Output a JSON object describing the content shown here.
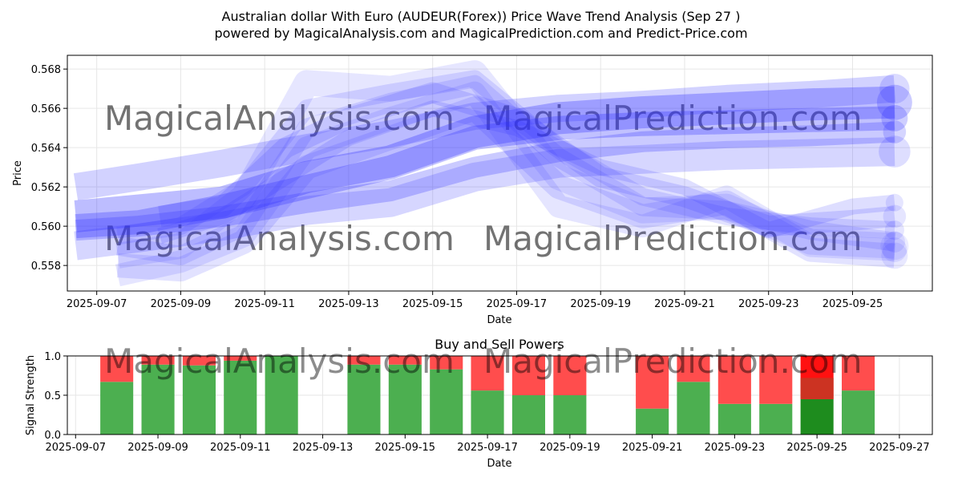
{
  "figure": {
    "title_line1": "Australian dollar With Euro (AUDEUR(Forex)) Price Wave Trend Analysis (Sep 27 )",
    "title_line2": "powered by MagicalAnalysis.com and MagicalPrediction.com and Predict-Price.com",
    "watermark_left": "MagicalAnalysis.com",
    "watermark_right": "MagicalPrediction.com"
  },
  "chart_data": [
    {
      "type": "line",
      "name": "price-wave",
      "xlabel": "Date",
      "ylabel": "Price",
      "xlim": [
        "2025-09-06.3",
        "2025-09-26.9"
      ],
      "ylim": [
        0.5567,
        0.5687
      ],
      "x_ticks": [
        "2025-09-07",
        "2025-09-09",
        "2025-09-11",
        "2025-09-13",
        "2025-09-15",
        "2025-09-17",
        "2025-09-19",
        "2025-09-21",
        "2025-09-23",
        "2025-09-25"
      ],
      "y_ticks": [
        0.558,
        0.56,
        0.562,
        0.564,
        0.566,
        0.568
      ],
      "color": "#3333ff",
      "series": [
        {
          "name": "wave-1",
          "x": [
            "2025-09-06.5",
            "2025-09-08",
            "2025-09-10",
            "2025-09-12",
            "2025-09-14",
            "2025-09-16",
            "2025-09-18",
            "2025-09-20",
            "2025-09-22",
            "2025-09-24",
            "2025-09-26"
          ],
          "values": [
            0.5605,
            0.5608,
            0.5612,
            0.5625,
            0.5633,
            0.5648,
            0.5655,
            0.5658,
            0.566,
            0.5662,
            0.5663
          ]
        },
        {
          "name": "wave-2",
          "x": [
            "2025-09-06.5",
            "2025-09-08",
            "2025-09-10",
            "2025-09-12",
            "2025-09-14",
            "2025-09-16",
            "2025-09-18",
            "2025-09-20",
            "2025-09-22",
            "2025-09-24",
            "2025-09-26"
          ],
          "values": [
            0.56,
            0.5602,
            0.561,
            0.562,
            0.563,
            0.5645,
            0.565,
            0.5652,
            0.5653,
            0.5654,
            0.5655
          ]
        },
        {
          "name": "wave-3",
          "x": [
            "2025-09-06.5",
            "2025-09-08",
            "2025-09-10",
            "2025-09-12",
            "2025-09-14",
            "2025-09-16",
            "2025-09-18",
            "2025-09-20",
            "2025-09-22",
            "2025-09-24",
            "2025-09-26"
          ],
          "values": [
            0.562,
            0.5625,
            0.5632,
            0.564,
            0.5647,
            0.5656,
            0.566,
            0.5662,
            0.5665,
            0.5667,
            0.567
          ]
        },
        {
          "name": "wave-4",
          "x": [
            "2025-09-06.5",
            "2025-09-08",
            "2025-09-10",
            "2025-09-12",
            "2025-09-14",
            "2025-09-16",
            "2025-09-18",
            "2025-09-20",
            "2025-09-22",
            "2025-09-24",
            "2025-09-26"
          ],
          "values": [
            0.5598,
            0.56,
            0.5605,
            0.5612,
            0.5618,
            0.563,
            0.5638,
            0.5643,
            0.5645,
            0.5646,
            0.5648
          ]
        },
        {
          "name": "wave-5",
          "x": [
            "2025-09-06.5",
            "2025-09-08",
            "2025-09-10",
            "2025-09-12",
            "2025-09-14",
            "2025-09-16",
            "2025-09-18",
            "2025-09-20",
            "2025-09-22",
            "2025-09-24",
            "2025-09-26"
          ],
          "values": [
            0.559,
            0.5594,
            0.56,
            0.5608,
            0.5612,
            0.5625,
            0.5632,
            0.5634,
            0.5636,
            0.5637,
            0.5638
          ]
        },
        {
          "name": "wave-6",
          "x": [
            "2025-09-07.5",
            "2025-09-09",
            "2025-09-10.5",
            "2025-09-12",
            "2025-09-14",
            "2025-09-16",
            "2025-09-18",
            "2025-09-20",
            "2025-09-22",
            "2025-09-24",
            "2025-09-26"
          ],
          "values": [
            0.559,
            0.5585,
            0.56,
            0.565,
            0.5663,
            0.5672,
            0.5635,
            0.561,
            0.5608,
            0.5598,
            0.5592
          ]
        },
        {
          "name": "wave-7",
          "x": [
            "2025-09-07.5",
            "2025-09-09",
            "2025-09-10.5",
            "2025-09-12",
            "2025-09-14",
            "2025-09-16",
            "2025-09-18",
            "2025-09-20",
            "2025-09-22",
            "2025-09-24",
            "2025-09-26"
          ],
          "values": [
            0.5585,
            0.559,
            0.5615,
            0.5673,
            0.567,
            0.5678,
            0.5625,
            0.5608,
            0.561,
            0.5592,
            0.559
          ]
        },
        {
          "name": "wave-8",
          "x": [
            "2025-09-07.5",
            "2025-09-09",
            "2025-09-10.5",
            "2025-09-12",
            "2025-09-14",
            "2025-09-16",
            "2025-09-18",
            "2025-09-20",
            "2025-09-22",
            "2025-09-24",
            "2025-09-26"
          ],
          "values": [
            0.5575,
            0.5582,
            0.5595,
            0.564,
            0.5655,
            0.5668,
            0.561,
            0.56,
            0.5615,
            0.559,
            0.5588
          ]
        },
        {
          "name": "wave-9",
          "x": [
            "2025-09-07.5",
            "2025-09-09",
            "2025-09-10.5",
            "2025-09-12",
            "2025-09-14",
            "2025-09-16",
            "2025-09-18",
            "2025-09-20",
            "2025-09-22",
            "2025-09-24",
            "2025-09-26"
          ],
          "values": [
            0.5595,
            0.56,
            0.562,
            0.566,
            0.5668,
            0.5675,
            0.564,
            0.5615,
            0.5605,
            0.56,
            0.5598
          ]
        },
        {
          "name": "wave-10",
          "x": [
            "2025-09-07.5",
            "2025-09-09",
            "2025-09-10.5",
            "2025-09-12",
            "2025-09-14",
            "2025-09-16",
            "2025-09-18",
            "2025-09-20",
            "2025-09-22",
            "2025-09-24",
            "2025-09-26"
          ],
          "values": [
            0.558,
            0.5578,
            0.5592,
            0.563,
            0.5645,
            0.566,
            0.562,
            0.5605,
            0.5612,
            0.5588,
            0.5585
          ]
        },
        {
          "name": "wave-11",
          "x": [
            "2025-09-08.5",
            "2025-09-10",
            "2025-09-11.5",
            "2025-09-13",
            "2025-09-15",
            "2025-09-17",
            "2025-09-19",
            "2025-09-21",
            "2025-09-23",
            "2025-09-25",
            "2025-09-26"
          ],
          "values": [
            0.5605,
            0.561,
            0.564,
            0.5655,
            0.5668,
            0.5655,
            0.5625,
            0.5615,
            0.56,
            0.5603,
            0.5605
          ]
        },
        {
          "name": "wave-12",
          "x": [
            "2025-09-08.5",
            "2025-09-10",
            "2025-09-11.5",
            "2025-09-13",
            "2025-09-15",
            "2025-09-17",
            "2025-09-19",
            "2025-09-21",
            "2025-09-23",
            "2025-09-25",
            "2025-09-26"
          ],
          "values": [
            0.5595,
            0.5605,
            0.5625,
            0.5645,
            0.566,
            0.565,
            0.563,
            0.562,
            0.5598,
            0.561,
            0.5612
          ]
        }
      ]
    },
    {
      "type": "bar",
      "name": "buy-sell-powers",
      "title": "Buy and Sell Powers",
      "xlabel": "Date",
      "ylabel": "Signal Strength",
      "xlim": [
        "2025-09-06.8",
        "2025-09-27.8"
      ],
      "ylim": [
        0.0,
        1.0
      ],
      "x_ticks": [
        "2025-09-07",
        "2025-09-09",
        "2025-09-11",
        "2025-09-13",
        "2025-09-15",
        "2025-09-17",
        "2025-09-19",
        "2025-09-21",
        "2025-09-23",
        "2025-09-25",
        "2025-09-27"
      ],
      "y_ticks": [
        "0.0",
        "0.5",
        "1.0"
      ],
      "categories": [
        "2025-09-08",
        "2025-09-09",
        "2025-09-10",
        "2025-09-11",
        "2025-09-12",
        "2025-09-14",
        "2025-09-15",
        "2025-09-16",
        "2025-09-17",
        "2025-09-18",
        "2025-09-19",
        "2025-09-21",
        "2025-09-22",
        "2025-09-23",
        "2025-09-24",
        "2025-09-25",
        "2025-09-26"
      ],
      "series": [
        {
          "name": "buy",
          "color": "#4caf50",
          "values": [
            0.67,
            0.89,
            0.88,
            0.94,
            1.0,
            0.89,
            0.89,
            0.83,
            0.56,
            0.5,
            0.5,
            0.33,
            0.67,
            0.39,
            0.39,
            0.45,
            0.56
          ]
        },
        {
          "name": "sell",
          "color": "#ff4d4d",
          "values": [
            0.33,
            0.11,
            0.12,
            0.06,
            0.0,
            0.11,
            0.11,
            0.17,
            0.44,
            0.5,
            0.5,
            0.67,
            0.33,
            0.61,
            0.61,
            0.55,
            0.44
          ]
        }
      ],
      "highlight": {
        "category": "2025-09-25",
        "buy_color": "#1e8c1e",
        "mid_color": "#cc3322",
        "sell_color": "#ff1111",
        "mid_range": [
          0.45,
          0.72
        ]
      }
    }
  ]
}
